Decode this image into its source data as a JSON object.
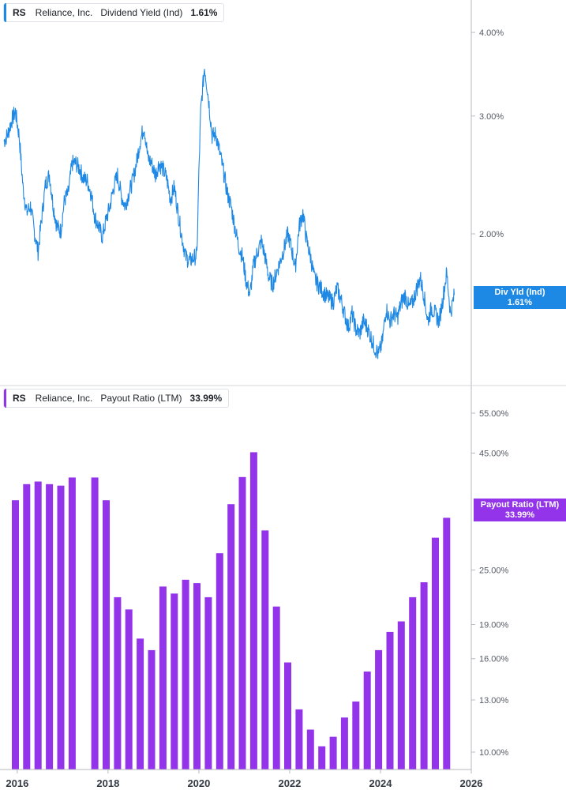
{
  "colors": {
    "yield_line": "#1e88e5",
    "payout_bar": "#9333ea",
    "axis": "#b5bac2",
    "divider": "#d0d4da"
  },
  "top_legend": {
    "ticker": "RS",
    "company": "Reliance, Inc.",
    "metric": "Dividend Yield (Ind)",
    "value": "1.61%"
  },
  "bottom_legend": {
    "ticker": "RS",
    "company": "Reliance, Inc.",
    "metric": "Payout Ratio (LTM)",
    "value": "33.99%"
  },
  "top_flag": {
    "label": "Div Yld (Ind)",
    "value": "1.61%"
  },
  "bottom_flag": {
    "label": "Payout Ratio (LTM)",
    "value": "33.99%"
  },
  "chart_data": [
    {
      "type": "line",
      "scale": "log",
      "x_range": [
        "2015-09-01",
        "2026-01-01"
      ],
      "y_ticks": [
        {
          "value": 4.0,
          "label": "4.00%"
        },
        {
          "value": 3.0,
          "label": "3.00%"
        },
        {
          "value": 2.0,
          "label": "2.00%"
        }
      ],
      "ylim": [
        1.25,
        4.5
      ],
      "x_ticks": [
        "2016",
        "2018",
        "2020",
        "2022",
        "2024",
        "2026"
      ],
      "series": [
        {
          "name": "Dividend Yield (Ind)",
          "x": [
            "2015-09",
            "2015-10",
            "2015-11",
            "2015-12",
            "2016-01",
            "2016-02",
            "2016-03",
            "2016-04",
            "2016-05",
            "2016-06",
            "2016-07",
            "2016-08",
            "2016-09",
            "2016-10",
            "2016-11",
            "2016-12",
            "2017-01",
            "2017-02",
            "2017-03",
            "2017-04",
            "2017-05",
            "2017-06",
            "2017-07",
            "2017-08",
            "2017-09",
            "2017-10",
            "2017-11",
            "2017-12",
            "2018-01",
            "2018-02",
            "2018-03",
            "2018-04",
            "2018-05",
            "2018-06",
            "2018-07",
            "2018-08",
            "2018-09",
            "2018-10",
            "2018-11",
            "2018-12",
            "2019-01",
            "2019-02",
            "2019-03",
            "2019-04",
            "2019-05",
            "2019-06",
            "2019-07",
            "2019-08",
            "2019-09",
            "2019-10",
            "2019-11",
            "2019-12",
            "2020-01",
            "2020-02",
            "2020-03",
            "2020-04",
            "2020-05",
            "2020-06",
            "2020-07",
            "2020-08",
            "2020-09",
            "2020-10",
            "2020-11",
            "2020-12",
            "2021-01",
            "2021-02",
            "2021-03",
            "2021-04",
            "2021-05",
            "2021-06",
            "2021-07",
            "2021-08",
            "2021-09",
            "2021-10",
            "2021-11",
            "2021-12",
            "2022-01",
            "2022-02",
            "2022-03",
            "2022-04",
            "2022-05",
            "2022-06",
            "2022-07",
            "2022-08",
            "2022-09",
            "2022-10",
            "2022-11",
            "2022-12",
            "2023-01",
            "2023-02",
            "2023-03",
            "2023-04",
            "2023-05",
            "2023-06",
            "2023-07",
            "2023-08",
            "2023-09",
            "2023-10",
            "2023-11",
            "2023-12",
            "2024-01",
            "2024-02",
            "2024-03",
            "2024-04",
            "2024-05",
            "2024-06",
            "2024-07",
            "2024-08",
            "2024-09",
            "2024-10",
            "2024-11",
            "2024-12",
            "2025-01",
            "2025-02",
            "2025-03",
            "2025-04",
            "2025-05",
            "2025-06",
            "2025-07",
            "2025-08"
          ],
          "values": [
            2.75,
            2.82,
            2.95,
            3.05,
            2.8,
            2.35,
            2.15,
            2.2,
            2.02,
            1.88,
            2.12,
            2.38,
            2.45,
            2.2,
            2.05,
            2.02,
            2.25,
            2.3,
            2.55,
            2.55,
            2.5,
            2.42,
            2.4,
            2.3,
            2.12,
            2.05,
            1.98,
            2.1,
            2.2,
            2.35,
            2.45,
            2.28,
            2.2,
            2.3,
            2.4,
            2.55,
            2.75,
            2.9,
            2.6,
            2.55,
            2.45,
            2.55,
            2.5,
            2.42,
            2.25,
            2.35,
            2.15,
            1.98,
            1.85,
            1.82,
            1.84,
            1.86,
            3.05,
            3.55,
            3.2,
            2.8,
            2.82,
            2.65,
            2.48,
            2.3,
            2.2,
            2.05,
            1.92,
            1.85,
            1.7,
            1.62,
            1.8,
            1.88,
            1.95,
            1.85,
            1.72,
            1.68,
            1.75,
            1.82,
            1.9,
            2.0,
            1.9,
            1.78,
            2.05,
            2.15,
            1.95,
            1.85,
            1.72,
            1.68,
            1.65,
            1.62,
            1.6,
            1.58,
            1.66,
            1.6,
            1.52,
            1.45,
            1.52,
            1.44,
            1.42,
            1.48,
            1.45,
            1.4,
            1.35,
            1.32,
            1.38,
            1.55,
            1.48,
            1.52,
            1.5,
            1.58,
            1.62,
            1.55,
            1.58,
            1.65,
            1.72,
            1.62,
            1.48,
            1.55,
            1.52,
            1.48,
            1.6,
            1.75,
            1.52,
            1.62
          ]
        }
      ]
    },
    {
      "type": "bar",
      "scale": "log",
      "y_ticks": [
        {
          "value": 55,
          "label": "55.00%"
        },
        {
          "value": 45,
          "label": "45.00%"
        },
        {
          "value": 25,
          "label": "25.00%"
        },
        {
          "value": 19,
          "label": "19.00%"
        },
        {
          "value": 16,
          "label": "16.00%"
        },
        {
          "value": 13,
          "label": "13.00%"
        },
        {
          "value": 10,
          "label": "10.00%"
        }
      ],
      "ylim": [
        9.2,
        65
      ],
      "x_ticks": [
        "2016",
        "2018",
        "2020",
        "2022",
        "2024",
        "2026"
      ],
      "series": [
        {
          "name": "Payout Ratio (LTM)",
          "x": [
            "2015-12",
            "2016-03",
            "2016-06",
            "2016-09",
            "2016-12",
            "2017-03",
            "2017-06",
            "2017-09",
            "2017-12",
            "2018-03",
            "2018-06",
            "2018-09",
            "2018-12",
            "2019-03",
            "2019-06",
            "2019-09",
            "2019-12",
            "2020-03",
            "2020-06",
            "2020-09",
            "2020-12",
            "2021-03",
            "2021-06",
            "2021-09",
            "2021-12",
            "2022-03",
            "2022-06",
            "2022-09",
            "2022-12",
            "2023-03",
            "2023-06",
            "2023-09",
            "2023-12",
            "2024-03",
            "2024-06",
            "2024-09",
            "2024-12",
            "2025-03",
            "2025-06"
          ],
          "values": [
            35.5,
            38.5,
            39.0,
            38.5,
            38.2,
            39.8,
            null,
            39.8,
            35.5,
            21.8,
            20.5,
            17.7,
            16.7,
            23.0,
            22.2,
            23.8,
            23.4,
            21.8,
            27.2,
            34.8,
            39.9,
            45.2,
            30.5,
            20.8,
            15.7,
            12.4,
            11.2,
            10.3,
            10.8,
            11.9,
            12.9,
            15.0,
            16.7,
            18.3,
            19.3,
            21.8,
            23.5,
            29.4,
            32.5
          ]
        }
      ]
    }
  ]
}
